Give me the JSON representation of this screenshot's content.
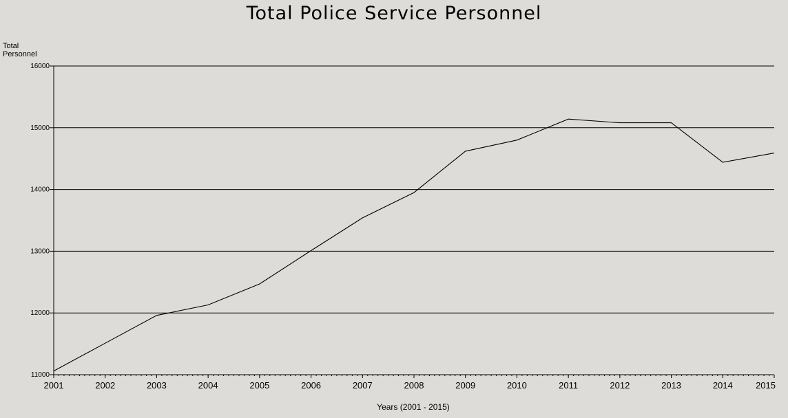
{
  "chart_data": {
    "type": "line",
    "title": "Total Police Service Personnel",
    "xlabel": "Years (2001 - 2015)",
    "ylabel": "Total\nPersonnel",
    "x": [
      2001,
      2002,
      2003,
      2004,
      2005,
      2006,
      2007,
      2008,
      2009,
      2010,
      2011,
      2012,
      2013,
      2014,
      2015
    ],
    "x_ticks": [
      "2001",
      "2002",
      "2003",
      "2004",
      "2005",
      "2006",
      "2007",
      "2008",
      "2009",
      "2010",
      "2011",
      "2012",
      "2013",
      "2014",
      "2015"
    ],
    "y_ticks": [
      "11000",
      "12000",
      "13000",
      "14000",
      "15000",
      "16000"
    ],
    "xlim": [
      2001,
      2015
    ],
    "ylim": [
      11000,
      16000
    ],
    "grid": "horizontal",
    "series": [
      {
        "values": [
          11060,
          11510,
          11960,
          12130,
          12470,
          13010,
          13540,
          13950,
          14620,
          14800,
          15140,
          15080,
          15080,
          14440,
          14590
        ],
        "color": "#000000"
      }
    ]
  }
}
